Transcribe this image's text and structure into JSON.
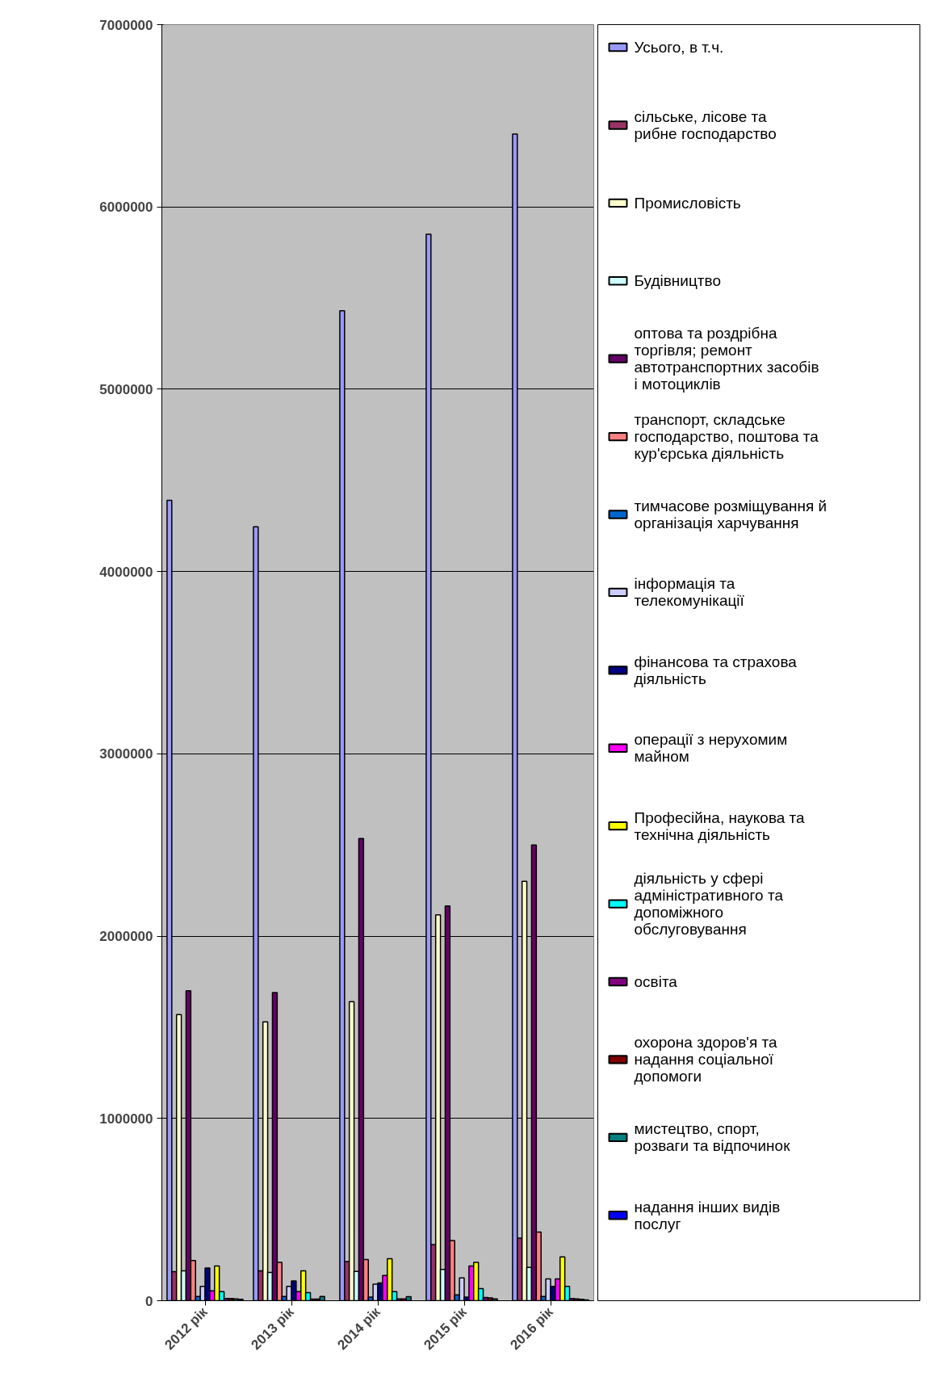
{
  "chart_data": {
    "type": "bar",
    "categories": [
      "2012 рік",
      "2013 рік",
      "2014 рік",
      "2015 рік",
      "2016 рік"
    ],
    "ylim": [
      0,
      7000000
    ],
    "yticks": [
      0,
      1000000,
      2000000,
      3000000,
      4000000,
      5000000,
      6000000,
      7000000
    ],
    "grid": "y",
    "legend": "right",
    "series": [
      {
        "name": "Усього, в т.ч.",
        "color": "#9999ff",
        "values": [
          4390000,
          4245000,
          5430000,
          5850000,
          6400000
        ]
      },
      {
        "name": "сільське, лісове та рибне господарство",
        "color": "#993366",
        "values": [
          160000,
          164000,
          215000,
          308000,
          343000
        ]
      },
      {
        "name": "Промисловість",
        "color": "#ffffcc",
        "values": [
          1570000,
          1530000,
          1640000,
          2117000,
          2300000
        ]
      },
      {
        "name": "Будівництво",
        "color": "#ccffff",
        "values": [
          164000,
          155000,
          161000,
          172000,
          183000
        ]
      },
      {
        "name": "оптова та роздрібна торгівля; ремонт автотранспортних засобів і мотоциклів",
        "color": "#660066",
        "values": [
          1700000,
          1690000,
          2535000,
          2165000,
          2500000
        ]
      },
      {
        "name": "транспорт, складське господарство, поштова та кур'єрська діяльність",
        "color": "#ff8080",
        "values": [
          220000,
          210000,
          226000,
          330000,
          377000
        ]
      },
      {
        "name": "тимчасове розміщування й організація харчування",
        "color": "#0066cc",
        "values": [
          23000,
          23000,
          20000,
          32000,
          23000
        ]
      },
      {
        "name": "інформація та телекомунікації",
        "color": "#ccccff",
        "values": [
          79000,
          79000,
          91000,
          125000,
          120000
        ]
      },
      {
        "name": "фінансова та страхова діяльність",
        "color": "#000080",
        "values": [
          179000,
          109000,
          98000,
          20000,
          79000
        ]
      },
      {
        "name": "операції з нерухомим майном",
        "color": "#ff00ff",
        "values": [
          54000,
          50000,
          139000,
          190000,
          120000
        ]
      },
      {
        "name": "Професійна, наукова та технічна діяльність",
        "color": "#ffff00",
        "values": [
          190000,
          164000,
          230000,
          210000,
          240000
        ]
      },
      {
        "name": "діяльність у сфері адміністративного та допоміжного обслуговування",
        "color": "#00ffff",
        "values": [
          50000,
          44000,
          50000,
          67000,
          79000
        ]
      },
      {
        "name": "освіта",
        "color": "#800080",
        "values": [
          12000,
          9000,
          10000,
          18000,
          12000
        ]
      },
      {
        "name": "охорона здоров'я та надання соціальної допомоги",
        "color": "#800000",
        "values": [
          12000,
          9000,
          10000,
          15000,
          10000
        ]
      },
      {
        "name": "мистецтво, спорт, розваги та відпочинок",
        "color": "#008080",
        "values": [
          10000,
          23000,
          22000,
          10000,
          8000
        ]
      },
      {
        "name": "надання інших видів послуг",
        "color": "#0000ff",
        "values": [
          8000,
          null,
          null,
          null,
          4000
        ]
      }
    ]
  }
}
